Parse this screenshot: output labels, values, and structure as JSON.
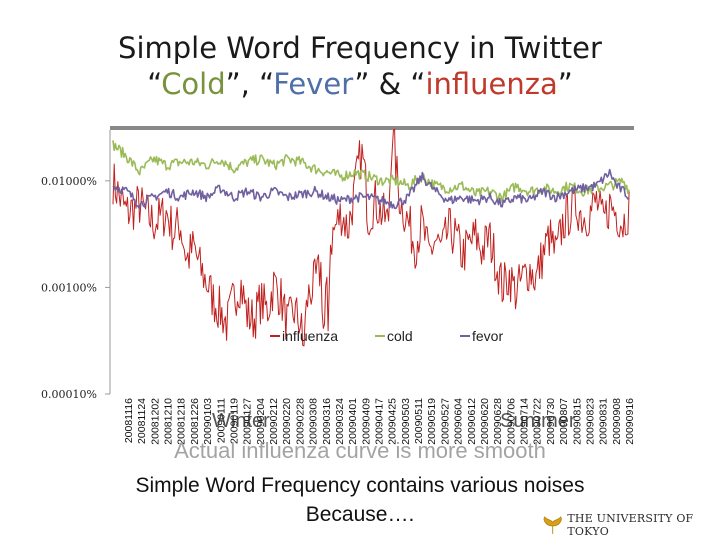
{
  "slide": {
    "title_line1": "Simple Word Frequency in Twitter",
    "title_open_q": "“",
    "title_word_cold": "Cold",
    "title_sep1": "”, “",
    "title_word_fever": "Fever",
    "title_sep2": "” & “",
    "title_word_influenza": "influenza",
    "title_close_q": "”",
    "caption_line1": "Actual influenza curve is more smooth",
    "caption_line2": "Simple Word Frequency contains various noises",
    "caption_line3": "Because….",
    "logo_text": "THE UNIVERSITY OF TOKYO",
    "logo_icon": "ginkgo-leaf-icon"
  },
  "colors": {
    "influenza": "#c0201e",
    "cold": "#9bbb59",
    "fever": "#7060a0",
    "title_cold": "#77933c",
    "title_fever": "#4f6fa8",
    "title_influenza": "#c0392b"
  },
  "chart_data": {
    "type": "line",
    "title": "",
    "xlabel": "",
    "ylabel": "",
    "y_scale": "log",
    "ylim": [
      1e-06,
      0.0003
    ],
    "y_ticks": [
      {
        "value": 0.0001,
        "label": "0.01000%"
      },
      {
        "value": 1e-05,
        "label": "0.00100%"
      },
      {
        "value": 1e-06,
        "label": "0.00010%"
      }
    ],
    "x_tick_labels": [
      "20081116",
      "20081124",
      "20081202",
      "20081210",
      "20081218",
      "20081226",
      "20090103",
      "20090111",
      "20090119",
      "20090127",
      "20090204",
      "20090212",
      "20090220",
      "20090228",
      "20090308",
      "20090316",
      "20090324",
      "20090401",
      "20090409",
      "20090417",
      "20090425",
      "20090503",
      "20090511",
      "20090519",
      "20090527",
      "20090604",
      "20090612",
      "20090620",
      "20090628",
      "20090706",
      "20090714",
      "20090722",
      "20090730",
      "20090807",
      "20090815",
      "20090823",
      "20090831",
      "20090908",
      "20090916"
    ],
    "annotations": [
      "Winter",
      "Summer"
    ],
    "legend_position": "center",
    "series": [
      {
        "name": "influenza",
        "key": "influenza",
        "anchors": [
          [
            0,
            0.0001
          ],
          [
            2,
            5e-05
          ],
          [
            4,
            6e-05
          ],
          [
            6,
            4e-05
          ],
          [
            8,
            5e-05
          ],
          [
            9,
            3.3e-05
          ],
          [
            10,
            4e-05
          ],
          [
            11,
            1.8e-05
          ],
          [
            12,
            2.4e-05
          ],
          [
            13,
            1.5e-05
          ],
          [
            14,
            1.1e-05
          ],
          [
            15,
            7.5e-06
          ],
          [
            16,
            6e-06
          ],
          [
            17,
            4.5e-06
          ],
          [
            18,
            8e-06
          ],
          [
            19,
            1.1e-05
          ],
          [
            20,
            5.5e-06
          ],
          [
            21,
            5e-06
          ],
          [
            22,
            7.5e-06
          ],
          [
            23,
            6e-06
          ],
          [
            24,
            1.1e-05
          ],
          [
            25,
            8e-06
          ],
          [
            26,
            4.5e-06
          ],
          [
            27,
            6e-06
          ],
          [
            28,
            4.5e-06
          ],
          [
            28.3,
            2.5e-06
          ],
          [
            28.6,
            4.5e-06
          ],
          [
            29,
            8e-06
          ],
          [
            30,
            1.1e-05
          ],
          [
            31,
            1.5e-05
          ],
          [
            31.4,
            3e-06
          ],
          [
            31.8,
            1.2e-05
          ],
          [
            32,
            3e-06
          ],
          [
            32.3,
            2.5e-05
          ],
          [
            33,
            3.5e-05
          ],
          [
            34,
            5e-05
          ],
          [
            35,
            3.5e-05
          ],
          [
            36,
            8e-05
          ],
          [
            36.5,
            0.00013
          ],
          [
            37,
            0.00018
          ],
          [
            37.5,
            0.00012
          ],
          [
            38,
            4.5e-05
          ],
          [
            39,
            6.5e-05
          ],
          [
            40,
            5e-05
          ],
          [
            41,
            4e-05
          ],
          [
            41.5,
            0.00027
          ],
          [
            42,
            0.00018
          ],
          [
            42.5,
            8e-05
          ],
          [
            43,
            6e-05
          ],
          [
            44,
            4e-05
          ],
          [
            45,
            2.5e-05
          ],
          [
            46,
            4e-05
          ],
          [
            47,
            2e-05
          ],
          [
            48,
            2.8e-05
          ],
          [
            49,
            2.2e-05
          ],
          [
            50,
            3.5e-05
          ],
          [
            51,
            3e-05
          ],
          [
            52,
            2e-05
          ],
          [
            53,
            2.5e-05
          ],
          [
            54,
            3e-05
          ],
          [
            55,
            2.2e-05
          ],
          [
            56,
            3e-05
          ],
          [
            57,
            1.8e-05
          ],
          [
            58,
            1e-05
          ],
          [
            59,
            1.3e-05
          ],
          [
            60,
            9e-06
          ],
          [
            61,
            1.2e-05
          ],
          [
            62,
            1.5e-05
          ],
          [
            63,
            1.2e-05
          ],
          [
            64,
            2e-05
          ],
          [
            65,
            3e-05
          ],
          [
            66,
            2e-05
          ],
          [
            67,
            4e-05
          ],
          [
            68,
            5e-05
          ],
          [
            69,
            6e-05
          ],
          [
            70,
            4.5e-05
          ],
          [
            71,
            5e-05
          ],
          [
            72,
            6.5e-05
          ],
          [
            73,
            4e-05
          ],
          [
            74,
            6e-05
          ],
          [
            75,
            5e-05
          ],
          [
            76,
            4e-05
          ],
          [
            77,
            6e-05
          ]
        ]
      },
      {
        "name": "cold",
        "key": "cold",
        "anchors": [
          [
            0,
            0.00022
          ],
          [
            2,
            0.00017
          ],
          [
            4,
            0.00012
          ],
          [
            6,
            0.00016
          ],
          [
            8,
            0.00014
          ],
          [
            10,
            0.00015
          ],
          [
            12,
            0.00015
          ],
          [
            14,
            0.00014
          ],
          [
            16,
            0.00016
          ],
          [
            18,
            0.00013
          ],
          [
            20,
            0.00015
          ],
          [
            22,
            0.00016
          ],
          [
            24,
            0.00014
          ],
          [
            26,
            0.00016
          ],
          [
            28,
            0.00015
          ],
          [
            30,
            0.00013
          ],
          [
            32,
            0.00012
          ],
          [
            34,
            0.00011
          ],
          [
            36,
            0.00012
          ],
          [
            38,
            0.00011
          ],
          [
            40,
            0.0001
          ],
          [
            42,
            0.0001
          ],
          [
            44,
            9e-05
          ],
          [
            46,
            0.00011
          ],
          [
            48,
            9e-05
          ],
          [
            50,
            8.5e-05
          ],
          [
            52,
            9e-05
          ],
          [
            54,
            7.5e-05
          ],
          [
            56,
            8e-05
          ],
          [
            58,
            7e-05
          ],
          [
            60,
            9e-05
          ],
          [
            62,
            8e-05
          ],
          [
            64,
            8.5e-05
          ],
          [
            66,
            8e-05
          ],
          [
            68,
            9e-05
          ],
          [
            70,
            8e-05
          ],
          [
            72,
            8.5e-05
          ],
          [
            74,
            9e-05
          ],
          [
            76,
            0.0001
          ],
          [
            77,
            8e-05
          ]
        ]
      },
      {
        "name": "fevor",
        "key": "fever",
        "anchors": [
          [
            0,
            9e-05
          ],
          [
            2,
            8e-05
          ],
          [
            4,
            6e-05
          ],
          [
            6,
            7e-05
          ],
          [
            8,
            8e-05
          ],
          [
            10,
            7e-05
          ],
          [
            12,
            8e-05
          ],
          [
            14,
            7e-05
          ],
          [
            16,
            8.5e-05
          ],
          [
            18,
            7e-05
          ],
          [
            20,
            8e-05
          ],
          [
            22,
            7e-05
          ],
          [
            24,
            8e-05
          ],
          [
            26,
            7e-05
          ],
          [
            28,
            7.5e-05
          ],
          [
            30,
            8e-05
          ],
          [
            32,
            7e-05
          ],
          [
            34,
            6.5e-05
          ],
          [
            36,
            7e-05
          ],
          [
            38,
            7e-05
          ],
          [
            40,
            6.5e-05
          ],
          [
            42,
            6e-05
          ],
          [
            44,
            7e-05
          ],
          [
            46,
            0.00011
          ],
          [
            48,
            8e-05
          ],
          [
            50,
            6.5e-05
          ],
          [
            52,
            7e-05
          ],
          [
            54,
            6.5e-05
          ],
          [
            56,
            7e-05
          ],
          [
            58,
            6e-05
          ],
          [
            60,
            7e-05
          ],
          [
            62,
            6.5e-05
          ],
          [
            64,
            8e-05
          ],
          [
            66,
            7e-05
          ],
          [
            68,
            8e-05
          ],
          [
            70,
            8.5e-05
          ],
          [
            72,
            9e-05
          ],
          [
            74,
            0.00012
          ],
          [
            75,
            9e-05
          ],
          [
            76,
            8e-05
          ],
          [
            77,
            7e-05
          ]
        ]
      }
    ]
  }
}
